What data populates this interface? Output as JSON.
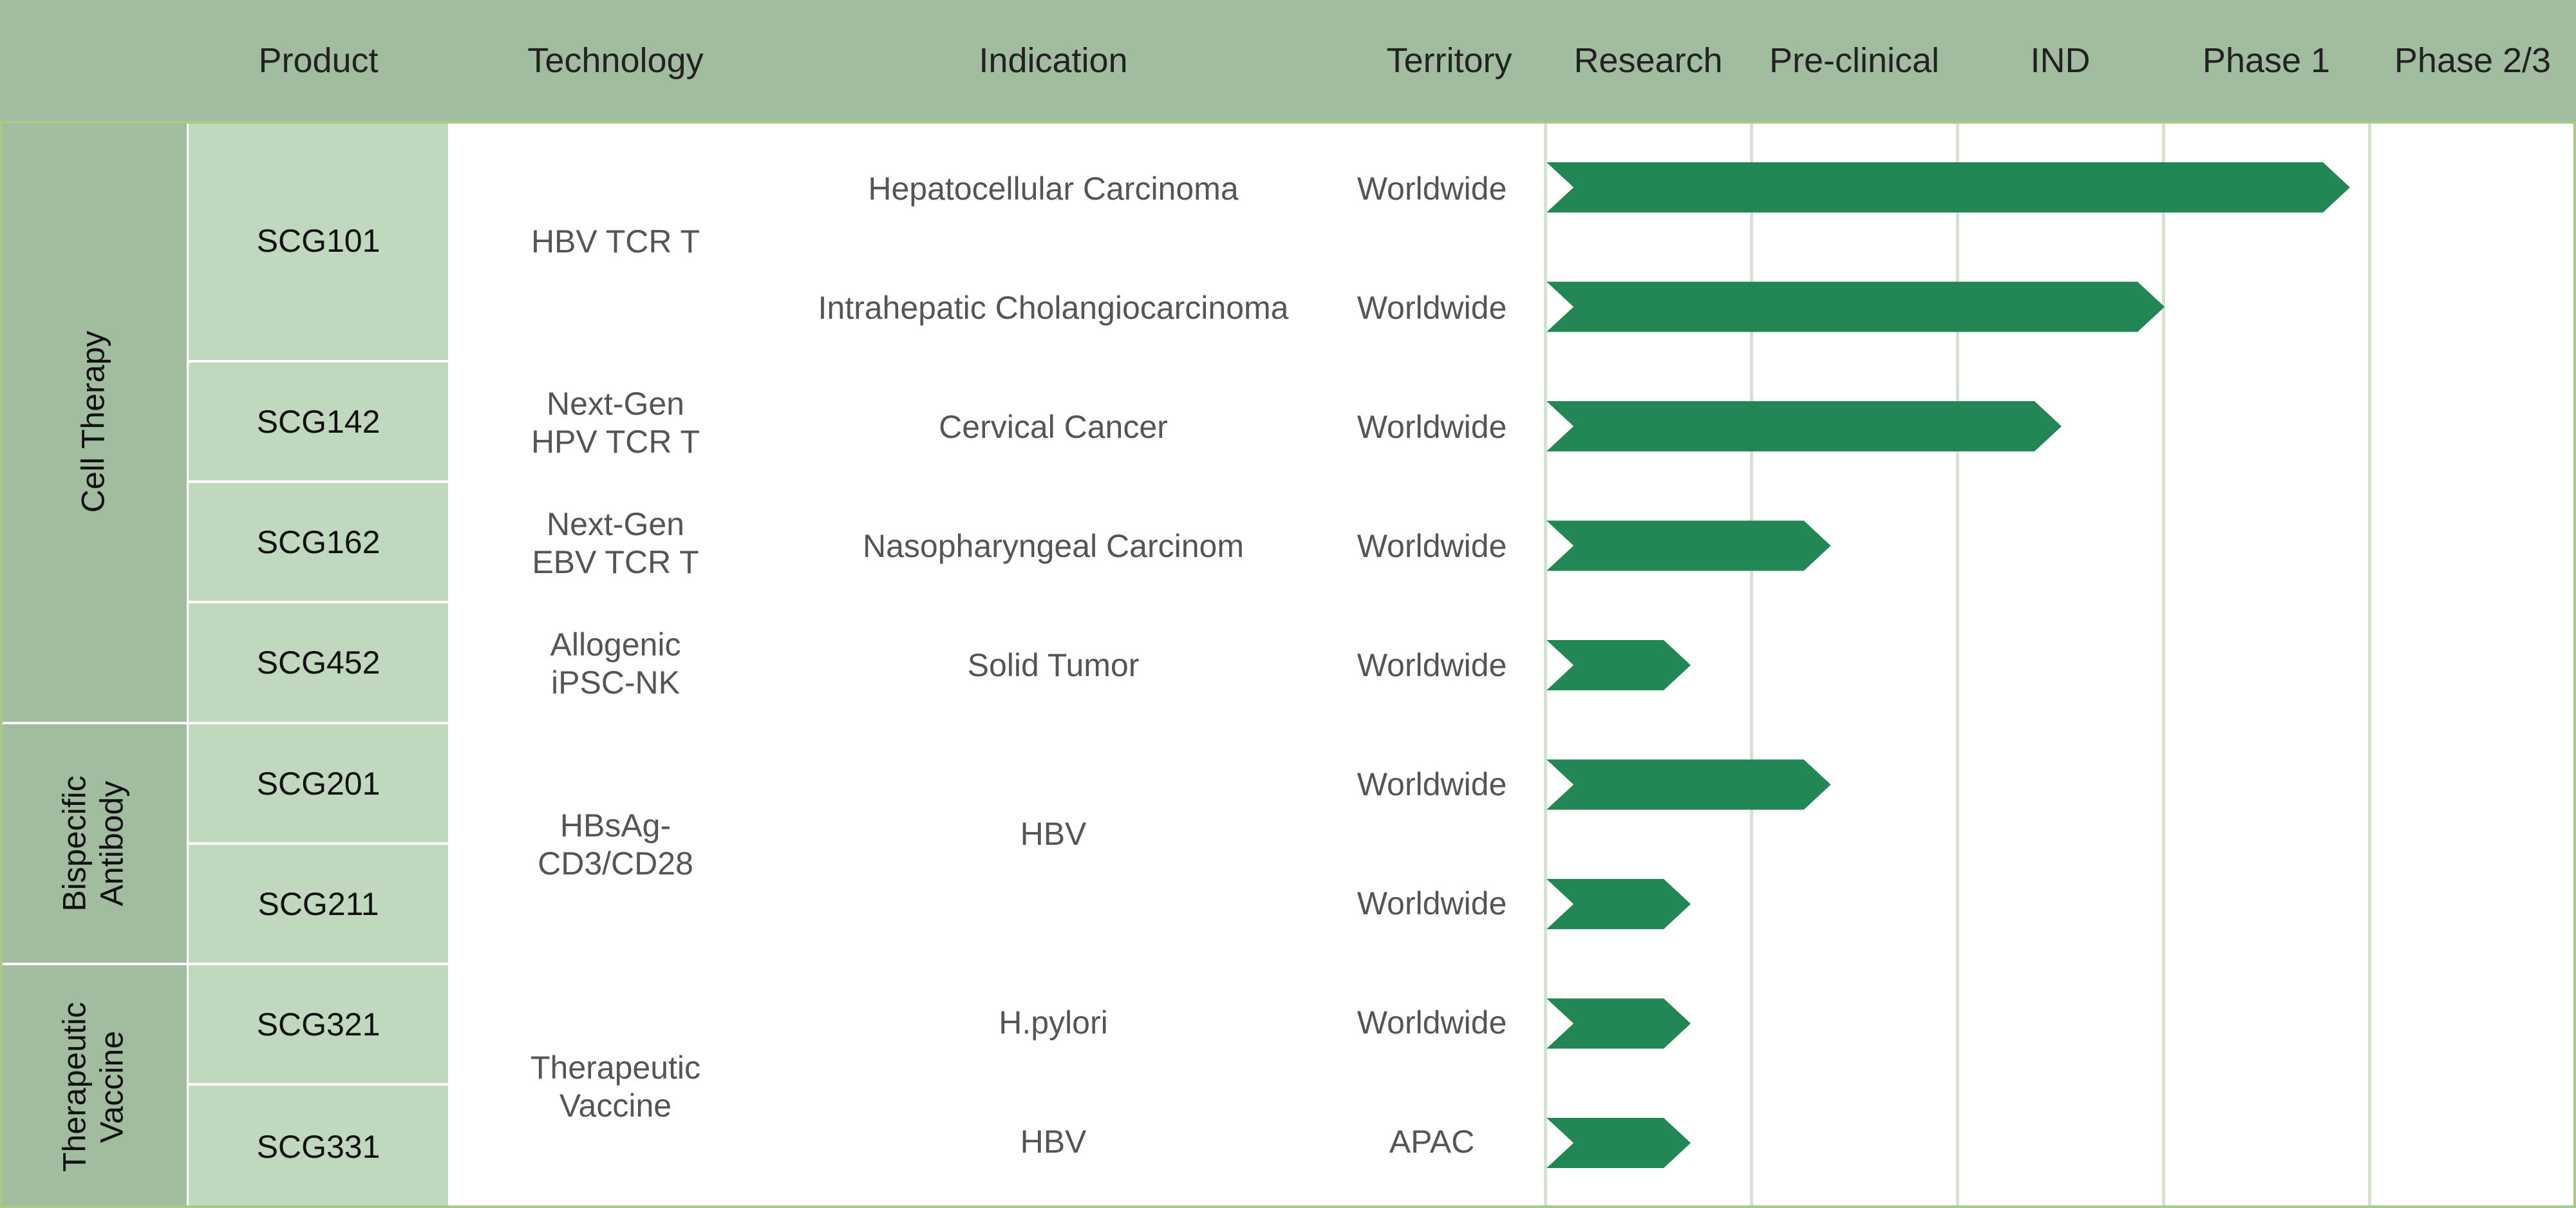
{
  "colors": {
    "header_bg": "#a2bc9f",
    "category_bg": "#a2bc9f",
    "product_bg": "#c0d8be",
    "bar": "#238755",
    "gridline": "#d5e2d2",
    "border": "#a8c987"
  },
  "header": {
    "product": "Product",
    "technology": "Technology",
    "indication": "Indication",
    "territory": "Territory"
  },
  "categories": [
    {
      "label": "Cell Therapy"
    },
    {
      "label": "Bispecific\nAntibody"
    },
    {
      "label": "Therapeutic\nVaccine"
    }
  ],
  "products": [
    "SCG101",
    "SCG142",
    "SCG162",
    "SCG452",
    "SCG201",
    "SCG211",
    "SCG321",
    "SCG331"
  ],
  "technologies": [
    "HBV TCR T",
    "Next-Gen\nHPV TCR T",
    "Next-Gen\nEBV TCR T",
    "Allogenic\niPSC-NK",
    "HBsAg-\nCD3/CD28",
    "Therapeutic\nVaccine"
  ],
  "indications": [
    "Hepatocellular Carcinoma",
    "Intrahepatic Cholangiocarcinoma",
    "Cervical Cancer",
    "Nasopharyngeal Carcinom",
    "Solid Tumor",
    "HBV",
    "H.pylori",
    "HBV"
  ],
  "chart_data": {
    "type": "bar",
    "orientation": "horizontal",
    "stages": [
      "Research",
      "Pre-clinical",
      "IND",
      "Phase 1",
      "Phase 2/3"
    ],
    "xlim": [
      0,
      5
    ],
    "rows": [
      {
        "product": "SCG101",
        "indication": "Hepatocellular Carcinoma",
        "territory": "Worldwide",
        "progress": 3.9
      },
      {
        "product": "SCG101",
        "indication": "Intrahepatic Cholangiocarcinoma",
        "territory": "Worldwide",
        "progress": 3.0
      },
      {
        "product": "SCG142",
        "indication": "Cervical Cancer",
        "territory": "Worldwide",
        "progress": 2.5
      },
      {
        "product": "SCG162",
        "indication": "Nasopharyngeal Carcinom",
        "territory": "Worldwide",
        "progress": 1.38
      },
      {
        "product": "SCG452",
        "indication": "Solid Tumor",
        "territory": "Worldwide",
        "progress": 0.7
      },
      {
        "product": "SCG201",
        "indication": "HBV",
        "territory": "Worldwide",
        "progress": 1.38
      },
      {
        "product": "SCG211",
        "indication": "HBV",
        "territory": "Worldwide",
        "progress": 0.7
      },
      {
        "product": "SCG321",
        "indication": "H.pylori",
        "territory": "Worldwide",
        "progress": 0.7
      },
      {
        "product": "SCG331",
        "indication": "HBV",
        "territory": "APAC",
        "progress": 0.7
      }
    ]
  }
}
